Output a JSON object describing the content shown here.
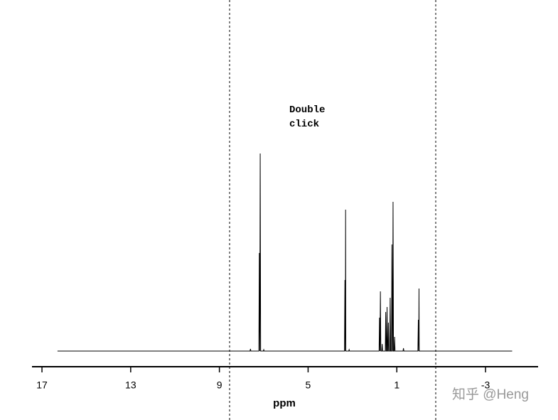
{
  "chart_data": {
    "type": "line",
    "annotation": "Double\nclick",
    "xlabel": "ppm",
    "watermark": "知乎 @Heng",
    "x": [
      16.3,
      7.62,
      7.6,
      7.58,
      7.22,
      7.2,
      7.18,
      7.18,
      7.16,
      7.14,
      7.02,
      7.0,
      6.98,
      3.36,
      3.34,
      3.32,
      3.32,
      3.31,
      3.3,
      3.17,
      3.15,
      3.13,
      1.8,
      1.78,
      1.76,
      1.76,
      1.74,
      1.72,
      1.68,
      1.66,
      1.64,
      1.52,
      1.5,
      1.48,
      1.46,
      1.44,
      1.42,
      1.4,
      1.38,
      1.36,
      1.32,
      1.3,
      1.28,
      1.24,
      1.22,
      1.2,
      1.19,
      1.17,
      1.15,
      1.12,
      1.1,
      1.08,
      0.72,
      0.7,
      0.68,
      0.05,
      0.03,
      0.01,
      0.01,
      0.0,
      -0.01,
      -4.2
    ],
    "values": [
      0,
      0,
      3,
      0,
      0,
      138,
      0,
      0,
      278,
      0,
      0,
      2,
      0,
      0,
      100,
      0,
      0,
      199,
      0,
      0,
      2,
      0,
      0,
      47,
      0,
      0,
      84,
      0,
      0,
      10,
      0,
      0,
      55,
      0,
      0,
      62,
      0,
      0,
      40,
      0,
      0,
      75,
      0,
      0,
      150,
      0,
      0,
      210,
      0,
      0,
      20,
      0,
      0,
      4,
      0,
      0,
      44,
      0,
      0,
      88,
      0,
      0
    ],
    "color": "#000000",
    "xlim": [
      17.45,
      -5.37
    ],
    "xticks": [
      17,
      13,
      9,
      5,
      1,
      -3
    ],
    "ylim": [
      0,
      300
    ]
  }
}
